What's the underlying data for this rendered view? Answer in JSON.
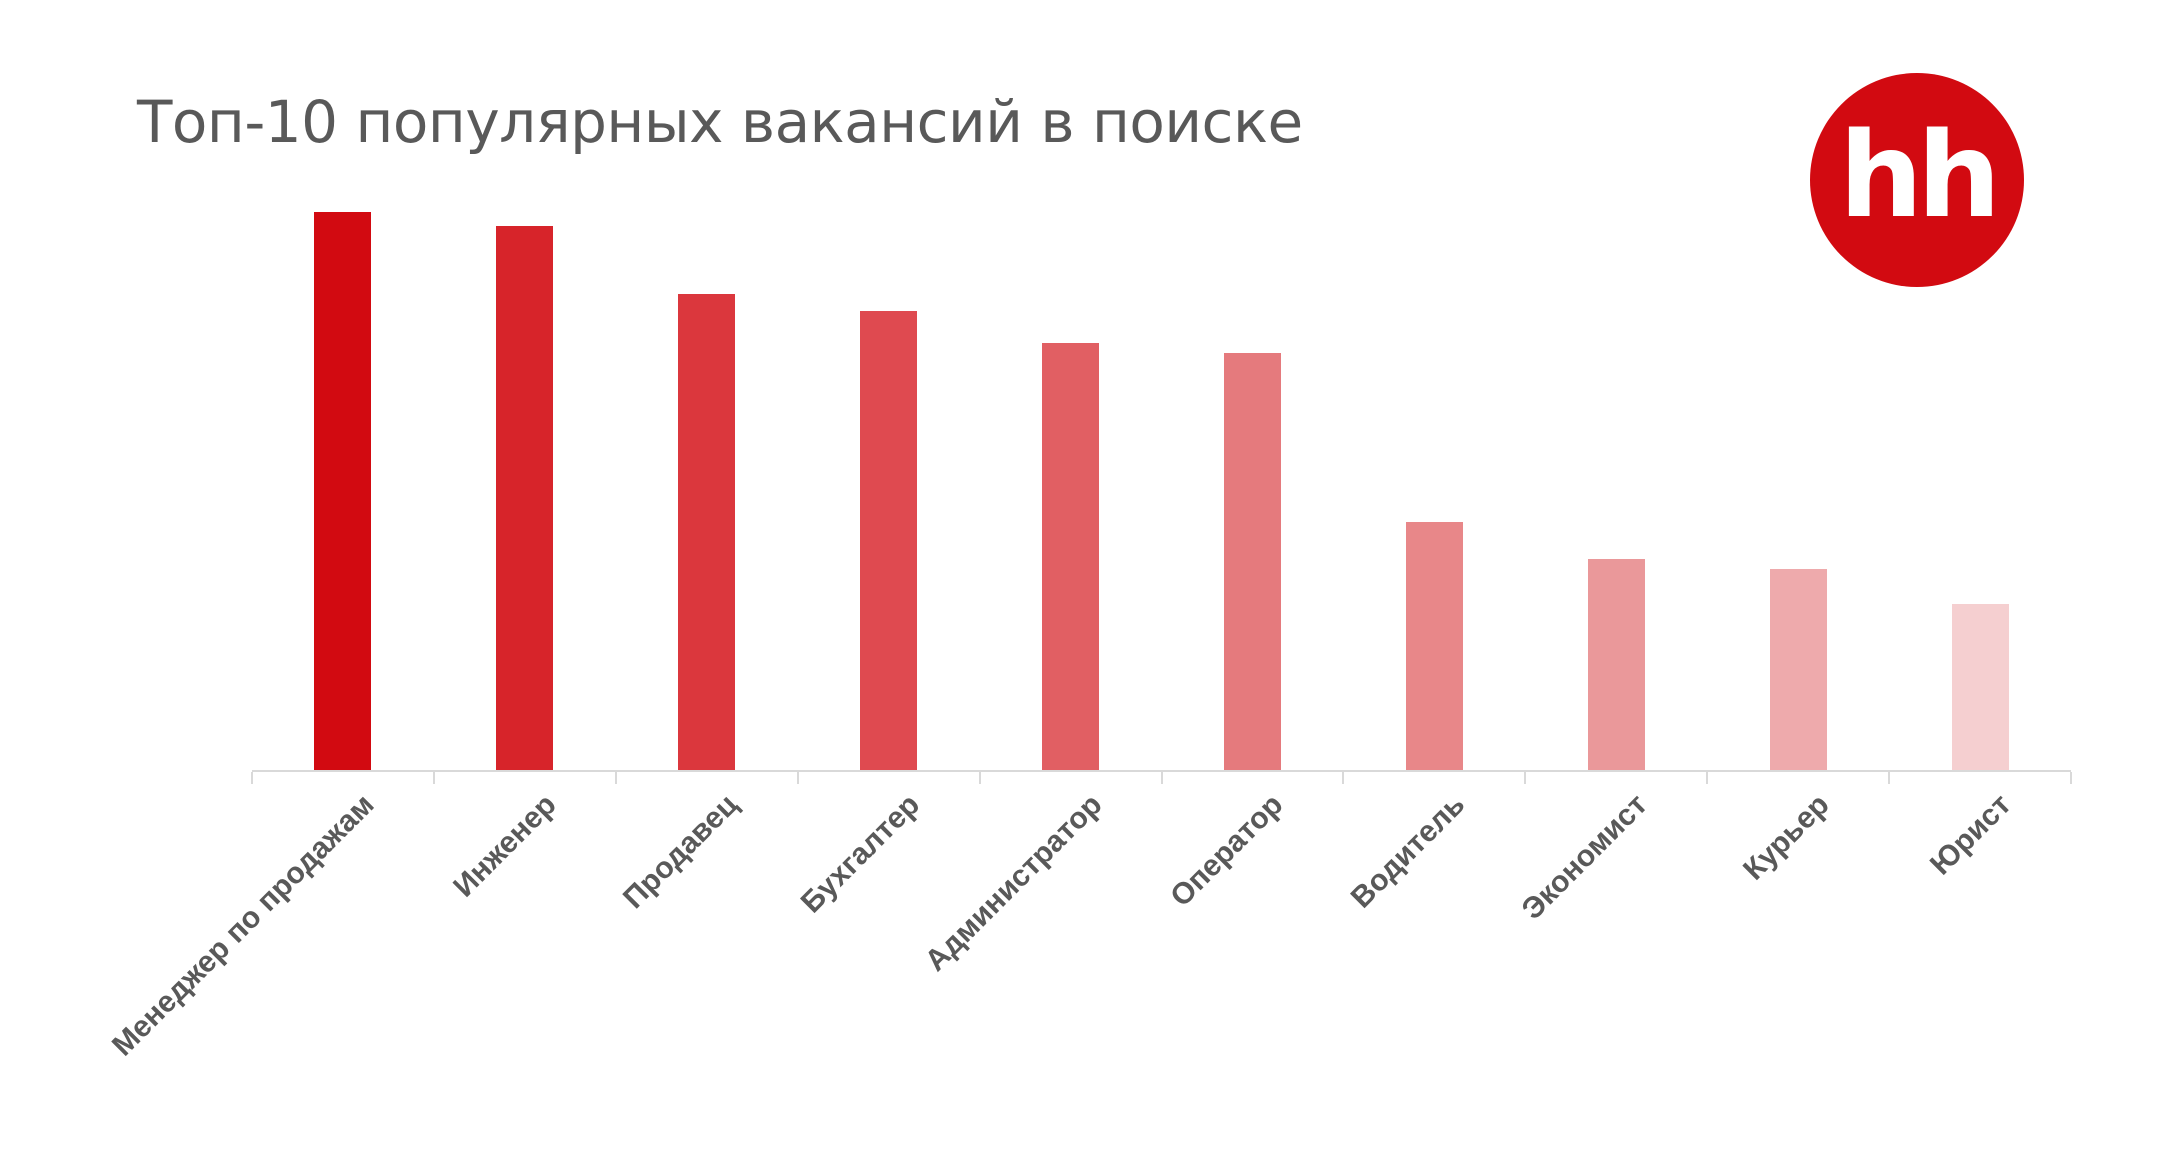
{
  "title": "Топ-10 популярных вакансий в поиске",
  "logo": {
    "text": "hh",
    "color": "#d20a11"
  },
  "chart_data": {
    "type": "bar",
    "title": "Топ-10 популярных вакансий в поиске",
    "xlabel": "",
    "ylabel": "",
    "categories": [
      "Менеджер по продажам",
      "Инженер",
      "Продавец",
      "Бухгалтер",
      "Администратор",
      "Оператор",
      "Водитель",
      "Экономист",
      "Курьер",
      "Юрист"
    ],
    "values": [
      100,
      97.5,
      85.3,
      82.3,
      76.5,
      74.8,
      44.5,
      37.8,
      36,
      29.8
    ],
    "value_note": "relative heights (no y-axis shown); max normalized to 100",
    "ylim": [
      0,
      100
    ],
    "grid": false,
    "legend": "none",
    "colors": [
      "#d20a11",
      "#d7242a",
      "#db373d",
      "#df4a50",
      "#e15f63",
      "#e57a7d",
      "#e88789",
      "#ea989a",
      "#eeaaac",
      "#f5cfd0"
    ]
  }
}
